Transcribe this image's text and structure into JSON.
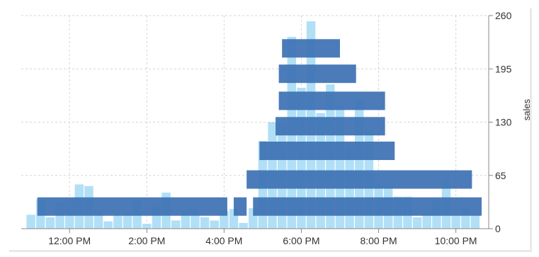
{
  "chart_data": {
    "type": "bar",
    "title": "",
    "xlabel": "",
    "ylabel": "sales",
    "ylim": [
      0,
      260
    ],
    "y_ticks": [
      "0",
      "65",
      "130",
      "195",
      "260"
    ],
    "x_ticks": [
      {
        "time": "12:00",
        "label": "12:00 PM"
      },
      {
        "time": "14:00",
        "label": "2:00 PM"
      },
      {
        "time": "16:00",
        "label": "4:00 PM"
      },
      {
        "time": "18:00",
        "label": "6:00 PM"
      },
      {
        "time": "20:00",
        "label": "8:00 PM"
      },
      {
        "time": "22:00",
        "label": "10:00 PM"
      }
    ],
    "grid": true,
    "y_axis_side": "right",
    "bar_interval_minutes": 15,
    "colors": {
      "detail_bars": "#a8dcf5",
      "aggregate_bars": "#3d72b4",
      "grid": "#d5d5d5",
      "axis": "#888888"
    },
    "series": [
      {
        "kind": "fine",
        "points": [
          [
            "11:00",
            17
          ],
          [
            "11:15",
            36
          ],
          [
            "11:30",
            14
          ],
          [
            "11:45",
            33
          ],
          [
            "12:00",
            35
          ],
          [
            "12:15",
            54
          ],
          [
            "12:30",
            52
          ],
          [
            "12:45",
            22
          ],
          [
            "13:00",
            9
          ],
          [
            "13:15",
            17
          ],
          [
            "13:30",
            18
          ],
          [
            "13:45",
            36
          ],
          [
            "14:00",
            6
          ],
          [
            "14:15",
            29
          ],
          [
            "14:30",
            44
          ],
          [
            "14:45",
            10
          ],
          [
            "15:00",
            22
          ],
          [
            "15:15",
            24
          ],
          [
            "15:30",
            14
          ],
          [
            "15:45",
            10
          ],
          [
            "16:00",
            22
          ],
          [
            "16:15",
            24
          ],
          [
            "16:30",
            7
          ],
          [
            "16:45",
            25
          ],
          [
            "17:00",
            107
          ],
          [
            "17:15",
            130
          ],
          [
            "17:30",
            128
          ],
          [
            "17:45",
            234
          ],
          [
            "18:00",
            172
          ],
          [
            "18:15",
            253
          ],
          [
            "18:30",
            141
          ],
          [
            "18:45",
            176
          ],
          [
            "19:00",
            150
          ],
          [
            "19:15",
            100
          ],
          [
            "19:30",
            158
          ],
          [
            "19:45",
            120
          ],
          [
            "20:00",
            55
          ],
          [
            "20:15",
            53
          ],
          [
            "20:30",
            39
          ],
          [
            "20:45",
            39
          ],
          [
            "21:00",
            14
          ],
          [
            "21:15",
            18
          ],
          [
            "21:30",
            35
          ],
          [
            "21:45",
            58
          ],
          [
            "22:00",
            16
          ],
          [
            "22:15",
            25
          ],
          [
            "22:30",
            16
          ]
        ]
      },
      {
        "kind": "hourly",
        "bars": [
          {
            "start": "11:10",
            "end": "16:05",
            "value": 27
          },
          {
            "start": "16:15",
            "end": "16:35",
            "value": 27
          },
          {
            "start": "16:45",
            "end": "22:40",
            "value": 27
          },
          {
            "start": "16:35",
            "end": "22:25",
            "value": 60
          },
          {
            "start": "16:55",
            "end": "20:25",
            "value": 95
          },
          {
            "start": "17:20",
            "end": "20:10",
            "value": 125
          },
          {
            "start": "17:25",
            "end": "20:10",
            "value": 156
          },
          {
            "start": "17:25",
            "end": "19:25",
            "value": 189
          },
          {
            "start": "17:30",
            "end": "19:00",
            "value": 220
          }
        ]
      }
    ]
  }
}
